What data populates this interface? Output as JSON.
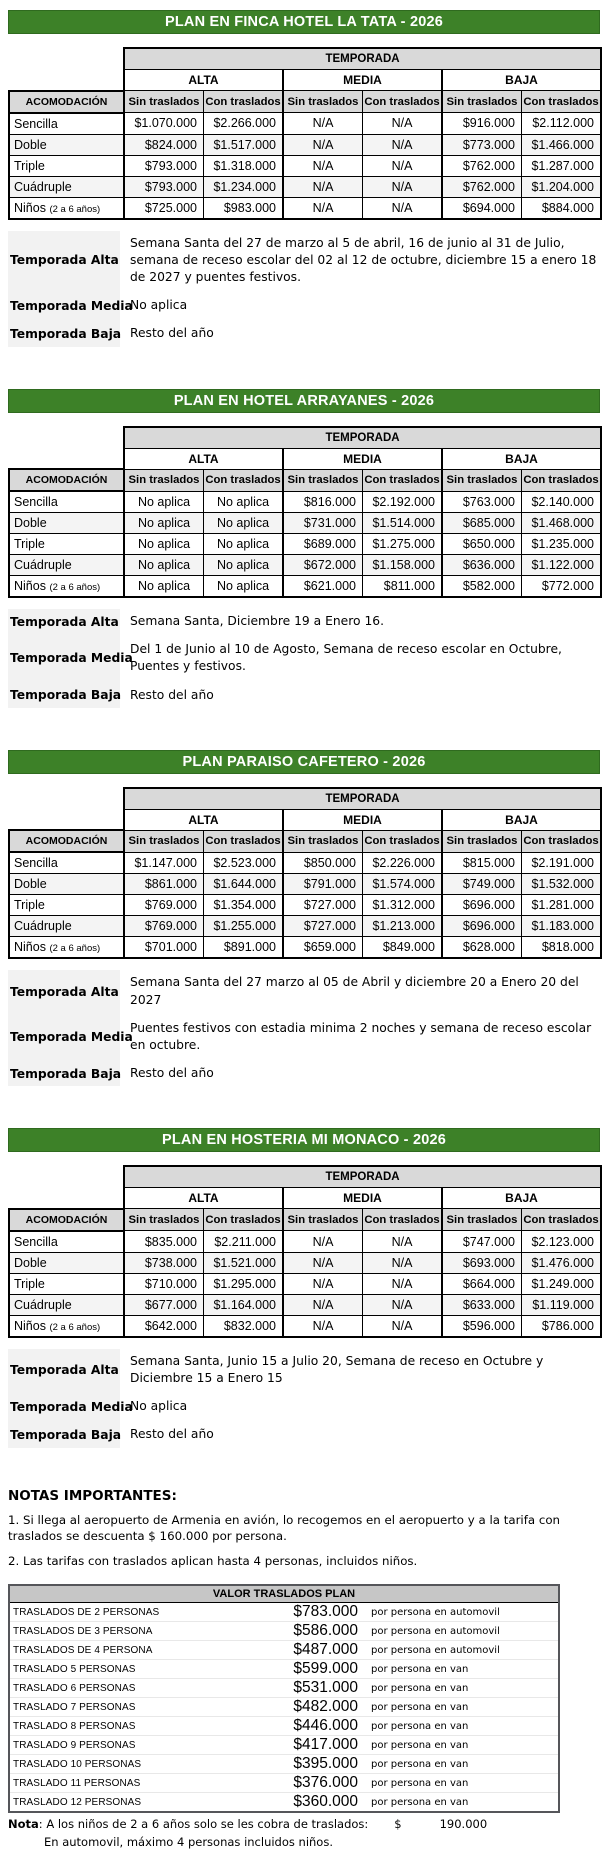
{
  "plans": [
    {
      "title": "PLAN EN FINCA HOTEL LA TATA - 2026",
      "table": {
        "temporada_label": "TEMPORADA",
        "season_headers": [
          "ALTA",
          "MEDIA",
          "BAJA"
        ],
        "acomodacion_label": "ACOMODACIÓN",
        "sub_headers": [
          "Sin traslados",
          "Con traslados",
          "Sin traslados",
          "Con traslados",
          "Sin traslados",
          "Con traslados"
        ],
        "rows": [
          {
            "label": "Sencilla",
            "label_note": "",
            "values": [
              "$1.070.000",
              "$2.266.000",
              "N/A",
              "N/A",
              "$916.000",
              "$2.112.000"
            ]
          },
          {
            "label": "Doble",
            "label_note": "",
            "values": [
              "$824.000",
              "$1.517.000",
              "N/A",
              "N/A",
              "$773.000",
              "$1.466.000"
            ]
          },
          {
            "label": "Triple",
            "label_note": "",
            "values": [
              "$793.000",
              "$1.318.000",
              "N/A",
              "N/A",
              "$762.000",
              "$1.287.000"
            ]
          },
          {
            "label": "Cuádruple",
            "label_note": "",
            "values": [
              "$793.000",
              "$1.234.000",
              "N/A",
              "N/A",
              "$762.000",
              "$1.204.000"
            ]
          },
          {
            "label": "Niños",
            "label_note": "(2 a 6 años)",
            "values": [
              "$725.000",
              "$983.000",
              "N/A",
              "N/A",
              "$694.000",
              "$884.000"
            ]
          }
        ]
      },
      "seasons": [
        {
          "label": "Temporada Alta",
          "text": "Semana Santa del 27 de marzo al 5 de abril, 16 de junio al 31 de Julio, semana de receso escolar del 02 al 12 de octubre, diciembre 15 a enero 18 de 2027 y puentes festivos."
        },
        {
          "label": "Temporada Media",
          "text": "No aplica"
        },
        {
          "label": "Temporada Baja",
          "text": "Resto del año"
        }
      ]
    },
    {
      "title": "PLAN EN HOTEL ARRAYANES - 2026",
      "table": {
        "temporada_label": "TEMPORADA",
        "season_headers": [
          "ALTA",
          "MEDIA",
          "BAJA"
        ],
        "acomodacion_label": "ACOMODACIÓN",
        "sub_headers": [
          "Sin traslados",
          "Con traslados",
          "Sin traslados",
          "Con traslados",
          "Sin traslados",
          "Con traslados"
        ],
        "rows": [
          {
            "label": "Sencilla",
            "label_note": "",
            "values": [
              "No aplica",
              "No aplica",
              "$816.000",
              "$2.192.000",
              "$763.000",
              "$2.140.000"
            ]
          },
          {
            "label": "Doble",
            "label_note": "",
            "values": [
              "No aplica",
              "No aplica",
              "$731.000",
              "$1.514.000",
              "$685.000",
              "$1.468.000"
            ]
          },
          {
            "label": "Triple",
            "label_note": "",
            "values": [
              "No aplica",
              "No aplica",
              "$689.000",
              "$1.275.000",
              "$650.000",
              "$1.235.000"
            ]
          },
          {
            "label": "Cuádruple",
            "label_note": "",
            "values": [
              "No aplica",
              "No aplica",
              "$672.000",
              "$1.158.000",
              "$636.000",
              "$1.122.000"
            ]
          },
          {
            "label": "Niños",
            "label_note": "(2 a 6 años)",
            "values": [
              "No aplica",
              "No aplica",
              "$621.000",
              "$811.000",
              "$582.000",
              "$772.000"
            ]
          }
        ]
      },
      "seasons": [
        {
          "label": "Temporada Alta",
          "text": "Semana Santa, Diciembre 19 a Enero 16."
        },
        {
          "label": "Temporada Media",
          "text": "Del 1 de Junio al 10 de Agosto, Semana de receso escolar en Octubre, Puentes y festivos."
        },
        {
          "label": "Temporada Baja",
          "text": "Resto del año"
        }
      ]
    },
    {
      "title": "PLAN PARAISO CAFETERO - 2026",
      "table": {
        "temporada_label": "TEMPORADA",
        "season_headers": [
          "ALTA",
          "MEDIA",
          "BAJA"
        ],
        "acomodacion_label": "ACOMODACIÓN",
        "sub_headers": [
          "Sin traslados",
          "Con traslados",
          "Sin traslados",
          "Con traslados",
          "Sin traslados",
          "Con traslados"
        ],
        "rows": [
          {
            "label": "Sencilla",
            "label_note": "",
            "values": [
              "$1.147.000",
              "$2.523.000",
              "$850.000",
              "$2.226.000",
              "$815.000",
              "$2.191.000"
            ]
          },
          {
            "label": "Doble",
            "label_note": "",
            "values": [
              "$861.000",
              "$1.644.000",
              "$791.000",
              "$1.574.000",
              "$749.000",
              "$1.532.000"
            ]
          },
          {
            "label": "Triple",
            "label_note": "",
            "values": [
              "$769.000",
              "$1.354.000",
              "$727.000",
              "$1.312.000",
              "$696.000",
              "$1.281.000"
            ]
          },
          {
            "label": "Cuádruple",
            "label_note": "",
            "values": [
              "$769.000",
              "$1.255.000",
              "$727.000",
              "$1.213.000",
              "$696.000",
              "$1.183.000"
            ]
          },
          {
            "label": "Niños",
            "label_note": "(2 a 6 años)",
            "values": [
              "$701.000",
              "$891.000",
              "$659.000",
              "$849.000",
              "$628.000",
              "$818.000"
            ]
          }
        ]
      },
      "seasons": [
        {
          "label": "Temporada Alta",
          "text": "Semana Santa del 27 marzo al 05 de Abril y diciembre 20 a Enero 20 del 2027"
        },
        {
          "label": "Temporada Media",
          "text": "Puentes festivos con estadia minima 2 noches y semana de receso escolar en octubre."
        },
        {
          "label": "Temporada Baja",
          "text": "Resto del año"
        }
      ]
    },
    {
      "title": "PLAN EN HOSTERIA MI MONACO - 2026",
      "table": {
        "temporada_label": "TEMPORADA",
        "season_headers": [
          "ALTA",
          "MEDIA",
          "BAJA"
        ],
        "acomodacion_label": "ACOMODACIÓN",
        "sub_headers": [
          "Sin traslados",
          "Con traslados",
          "Sin traslados",
          "Con traslados",
          "Sin traslados",
          "Con traslados"
        ],
        "rows": [
          {
            "label": "Sencilla",
            "label_note": "",
            "values": [
              "$835.000",
              "$2.211.000",
              "N/A",
              "N/A",
              "$747.000",
              "$2.123.000"
            ]
          },
          {
            "label": "Doble",
            "label_note": "",
            "values": [
              "$738.000",
              "$1.521.000",
              "N/A",
              "N/A",
              "$693.000",
              "$1.476.000"
            ]
          },
          {
            "label": "Triple",
            "label_note": "",
            "values": [
              "$710.000",
              "$1.295.000",
              "N/A",
              "N/A",
              "$664.000",
              "$1.249.000"
            ]
          },
          {
            "label": "Cuádruple",
            "label_note": "",
            "values": [
              "$677.000",
              "$1.164.000",
              "N/A",
              "N/A",
              "$633.000",
              "$1.119.000"
            ]
          },
          {
            "label": "Niños",
            "label_note": "(2 a 6 años)",
            "values": [
              "$642.000",
              "$832.000",
              "N/A",
              "N/A",
              "$596.000",
              "$786.000"
            ]
          }
        ]
      },
      "seasons": [
        {
          "label": "Temporada Alta",
          "text": "Semana Santa, Junio 15 a Julio 20, Semana de receso en Octubre y Diciembre 15 a Enero 15"
        },
        {
          "label": "Temporada Media",
          "text": "No aplica"
        },
        {
          "label": "Temporada Baja",
          "text": "Resto del año"
        }
      ]
    }
  ],
  "notes": {
    "title": "NOTAS IMPORTANTES:",
    "items": [
      "1. Si llega al aeropuerto de Armenia en avión, lo recogemos en el aeropuerto y a la tarifa con traslados se descuenta $ 160.000 por persona.",
      "2. Las tarifas con traslados aplican hasta 4 personas, incluidos niños."
    ]
  },
  "traslados": {
    "title": "VALOR TRASLADOS PLAN",
    "rows": [
      {
        "label": "TRASLADOS DE 2 PERSONAS",
        "price": "$783.000",
        "note": "por persona en automovil"
      },
      {
        "label": "TRASLADOS DE 3 PERSONA",
        "price": "$586.000",
        "note": "por persona en automovil"
      },
      {
        "label": "TRASLADOS DE 4 PERSONA",
        "price": "$487.000",
        "note": "por persona en automovil"
      },
      {
        "label": "TRASLADO 5 PERSONAS",
        "price": "$599.000",
        "note": "por persona en van"
      },
      {
        "label": "TRASLADO 6 PERSONAS",
        "price": "$531.000",
        "note": "por persona en van"
      },
      {
        "label": "TRASLADO 7 PERSONAS",
        "price": "$482.000",
        "note": "por persona en van"
      },
      {
        "label": "TRASLADO 8 PERSONAS",
        "price": "$446.000",
        "note": "por persona en van"
      },
      {
        "label": "TRASLADO 9 PERSONAS",
        "price": "$417.000",
        "note": "por persona en van"
      },
      {
        "label": "TRASLADO 10 PERSONAS",
        "price": "$395.000",
        "note": "por persona en van"
      },
      {
        "label": "TRASLADO 11 PERSONAS",
        "price": "$376.000",
        "note": "por persona en van"
      },
      {
        "label": "TRASLADO 12 PERSONAS",
        "price": "$360.000",
        "note": "por persona en van"
      }
    ],
    "footer": {
      "nota_label": "Nota",
      "nota_text": ": A los niños de 2 a 6 años solo se les cobra de traslados:",
      "currency": "$",
      "amount": "190.000",
      "line2": "En automovil, máximo 4 personas incluidos niños."
    }
  },
  "colors": {
    "accent_green": "#3d8128",
    "header_gray": "#d9d9d9",
    "stripe_gray": "#f4f4f4"
  }
}
